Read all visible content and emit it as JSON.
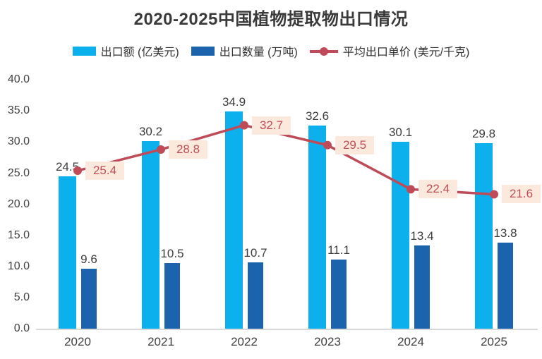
{
  "title": "2020-2025中国植物提取物出口情况",
  "legend": [
    {
      "label": "出口额 (亿美元)",
      "marker": "bar",
      "color": "#0cb0ec"
    },
    {
      "label": "出口数量 (万吨)",
      "marker": "bar",
      "color": "#1b63ac"
    },
    {
      "label": "平均出口单价 (美元/千克)",
      "marker": "line-dot",
      "color": "#be4b57"
    }
  ],
  "colors": {
    "export_value_bar": "#0cb0ec",
    "export_volume_bar": "#1b63ac",
    "price_line": "#be4b57",
    "price_label_bg": "#fbe9de",
    "price_label_text": "#c04e57",
    "axis_line": "#d9d9d9",
    "text": "#404040"
  },
  "chart_data": {
    "type": "bar+line",
    "title": "2020-2025中国植物提取物出口情况",
    "categories": [
      "2020",
      "2021",
      "2022",
      "2023",
      "2024",
      "2025"
    ],
    "series": [
      {
        "name": "出口额 (亿美元)",
        "type": "bar",
        "color": "#0cb0ec",
        "values": [
          24.5,
          30.2,
          34.9,
          32.6,
          30.1,
          29.8
        ]
      },
      {
        "name": "出口数量 (万吨)",
        "type": "bar",
        "color": "#1b63ac",
        "values": [
          9.6,
          10.5,
          10.7,
          11.1,
          13.4,
          13.8
        ]
      },
      {
        "name": "平均出口单价 (美元/千克)",
        "type": "line",
        "color": "#be4b57",
        "values": [
          25.4,
          28.8,
          32.7,
          29.5,
          22.4,
          21.6
        ],
        "label_bg": "#fbe9de",
        "label_text": "#c04e57"
      }
    ],
    "xlabel": "",
    "ylabel": "",
    "ylim": [
      0,
      40
    ],
    "ytick_step": 5,
    "yticks": [
      "0.0",
      "5.0",
      "10.0",
      "15.0",
      "20.0",
      "25.0",
      "30.0",
      "35.0",
      "40.0"
    ],
    "grid": false,
    "legend_position": "top",
    "value_labels": true
  }
}
